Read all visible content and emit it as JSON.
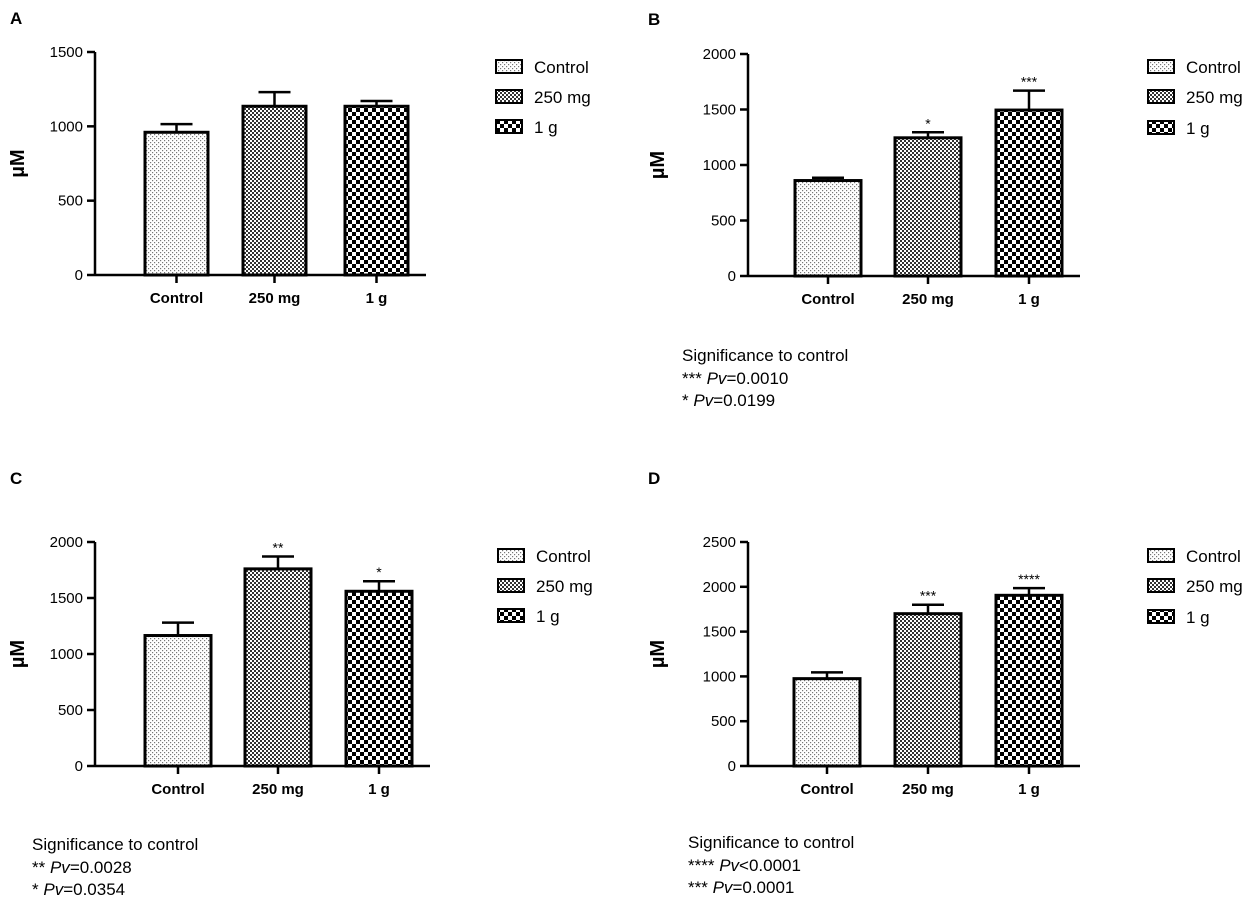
{
  "chart_data": [
    {
      "type": "bar",
      "panel_label": "A",
      "ylabel": "µM",
      "categories": [
        "Control",
        "250 mg",
        "1 g"
      ],
      "values": [
        960,
        1135,
        1135
      ],
      "errors": [
        55,
        95,
        35
      ],
      "significance": [
        "",
        "",
        ""
      ],
      "yticks": [
        0,
        500,
        1000,
        1500
      ],
      "ylim": [
        0,
        1500
      ],
      "legend": [
        "Control",
        "250 mg",
        "1 g"
      ],
      "legend_position": "right",
      "notes": null
    },
    {
      "type": "bar",
      "panel_label": "B",
      "ylabel": "µM",
      "categories": [
        "Control",
        "250 mg",
        "1 g"
      ],
      "values": [
        860,
        1245,
        1495
      ],
      "errors": [
        25,
        50,
        175
      ],
      "significance": [
        "",
        "*",
        "***"
      ],
      "yticks": [
        0,
        500,
        1000,
        1500,
        2000
      ],
      "ylim": [
        0,
        2000
      ],
      "legend": [
        "Control",
        "250 mg",
        "1 g"
      ],
      "legend_position": "right",
      "notes": {
        "title": "Significance to control",
        "lines": [
          {
            "stars": "***",
            "pv": "Pv",
            "value": "=0.0010"
          },
          {
            "stars": "*",
            "pv": "Pv",
            "value": "=0.0199"
          }
        ]
      }
    },
    {
      "type": "bar",
      "panel_label": "C",
      "ylabel": "µM",
      "categories": [
        "Control",
        "250 mg",
        "1 g"
      ],
      "values": [
        1165,
        1760,
        1560
      ],
      "errors": [
        115,
        110,
        90
      ],
      "significance": [
        "",
        "**",
        "*"
      ],
      "yticks": [
        0,
        500,
        1000,
        1500,
        2000
      ],
      "ylim": [
        0,
        2000
      ],
      "legend": [
        "Control",
        "250 mg",
        "1 g"
      ],
      "legend_position": "right",
      "notes": {
        "title": "Significance to control",
        "lines": [
          {
            "stars": "**",
            "pv": "Pv",
            "value": "=0.0028"
          },
          {
            "stars": "*",
            "pv": "Pv",
            "value": "=0.0354"
          }
        ]
      }
    },
    {
      "type": "bar",
      "panel_label": "D",
      "ylabel": "µM",
      "categories": [
        "Control",
        "250 mg",
        "1 g"
      ],
      "values": [
        975,
        1700,
        1905
      ],
      "errors": [
        70,
        100,
        80
      ],
      "significance": [
        "",
        "***",
        "****"
      ],
      "yticks": [
        0,
        500,
        1000,
        1500,
        2000,
        2500
      ],
      "ylim": [
        0,
        2500
      ],
      "legend": [
        "Control",
        "250 mg",
        "1 g"
      ],
      "legend_position": "right",
      "notes": {
        "title": "Significance to control",
        "lines": [
          {
            "stars": "****",
            "pv": "Pv",
            "value": "<0.0001"
          },
          {
            "stars": "***",
            "pv": "Pv",
            "value": "=0.0001"
          }
        ]
      }
    }
  ]
}
